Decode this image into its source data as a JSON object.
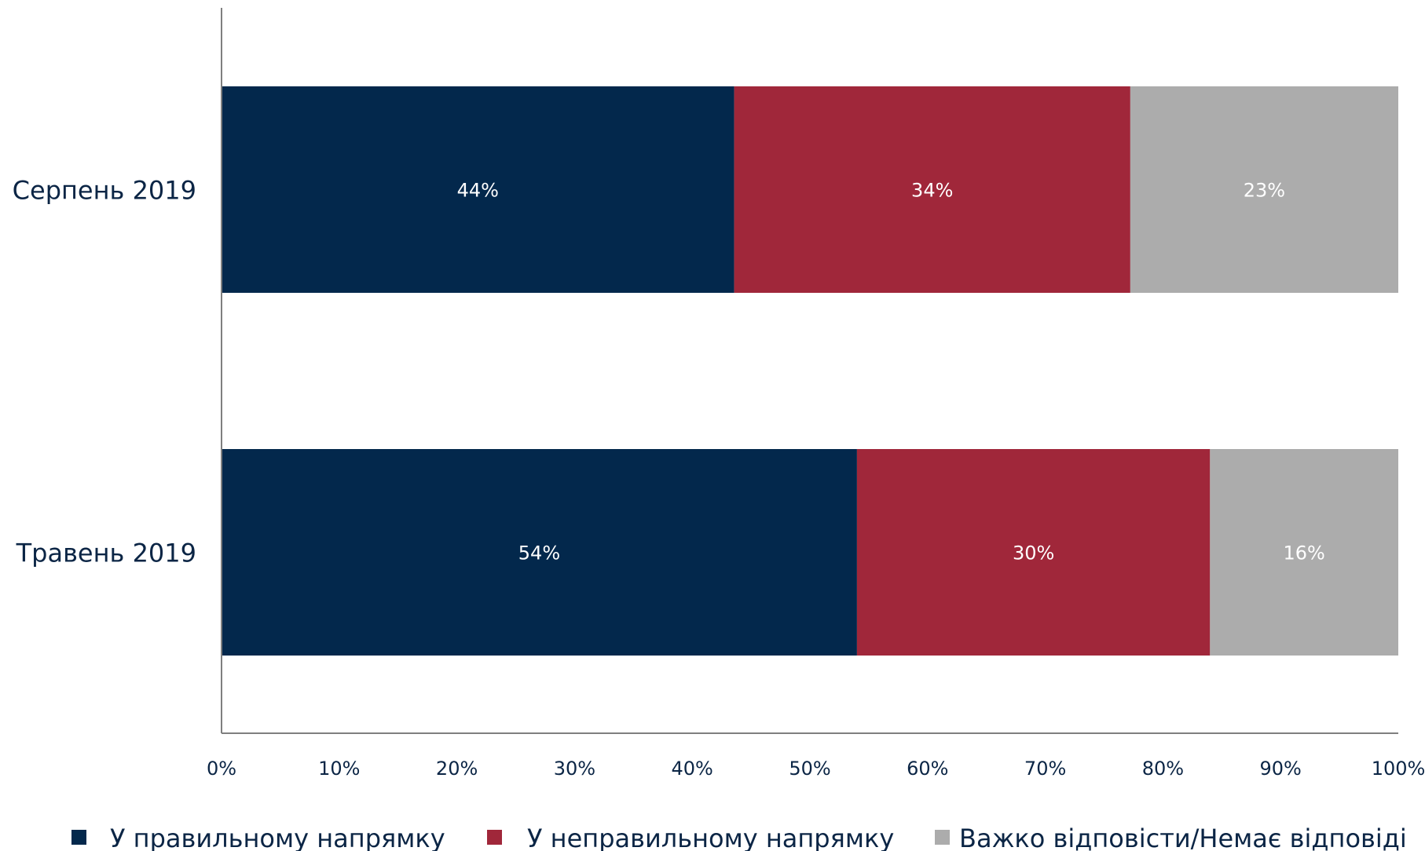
{
  "chart_data": {
    "type": "bar",
    "orientation": "horizontal",
    "stacked": true,
    "categories": [
      "Серпень 2019",
      "Травень 2019"
    ],
    "series": [
      {
        "name": "У правильному напрямку",
        "values": [
          44,
          54
        ],
        "labels": [
          "44%",
          "54%"
        ],
        "color": "#03284c"
      },
      {
        "name": "У неправильному напрямку",
        "values": [
          34,
          30
        ],
        "labels": [
          "34%",
          "30%"
        ],
        "color": "#a0273a"
      },
      {
        "name": "Важко відповісти/Немає відповіді",
        "values": [
          23,
          16
        ],
        "labels": [
          "23%",
          "16%"
        ],
        "color": "#acacac"
      }
    ],
    "x_ticks": [
      "0%",
      "10%",
      "20%",
      "30%",
      "40%",
      "50%",
      "60%",
      "70%",
      "80%",
      "90%",
      "100%"
    ],
    "xlim": [
      0,
      100
    ],
    "grid": false,
    "legend_position": "bottom"
  }
}
